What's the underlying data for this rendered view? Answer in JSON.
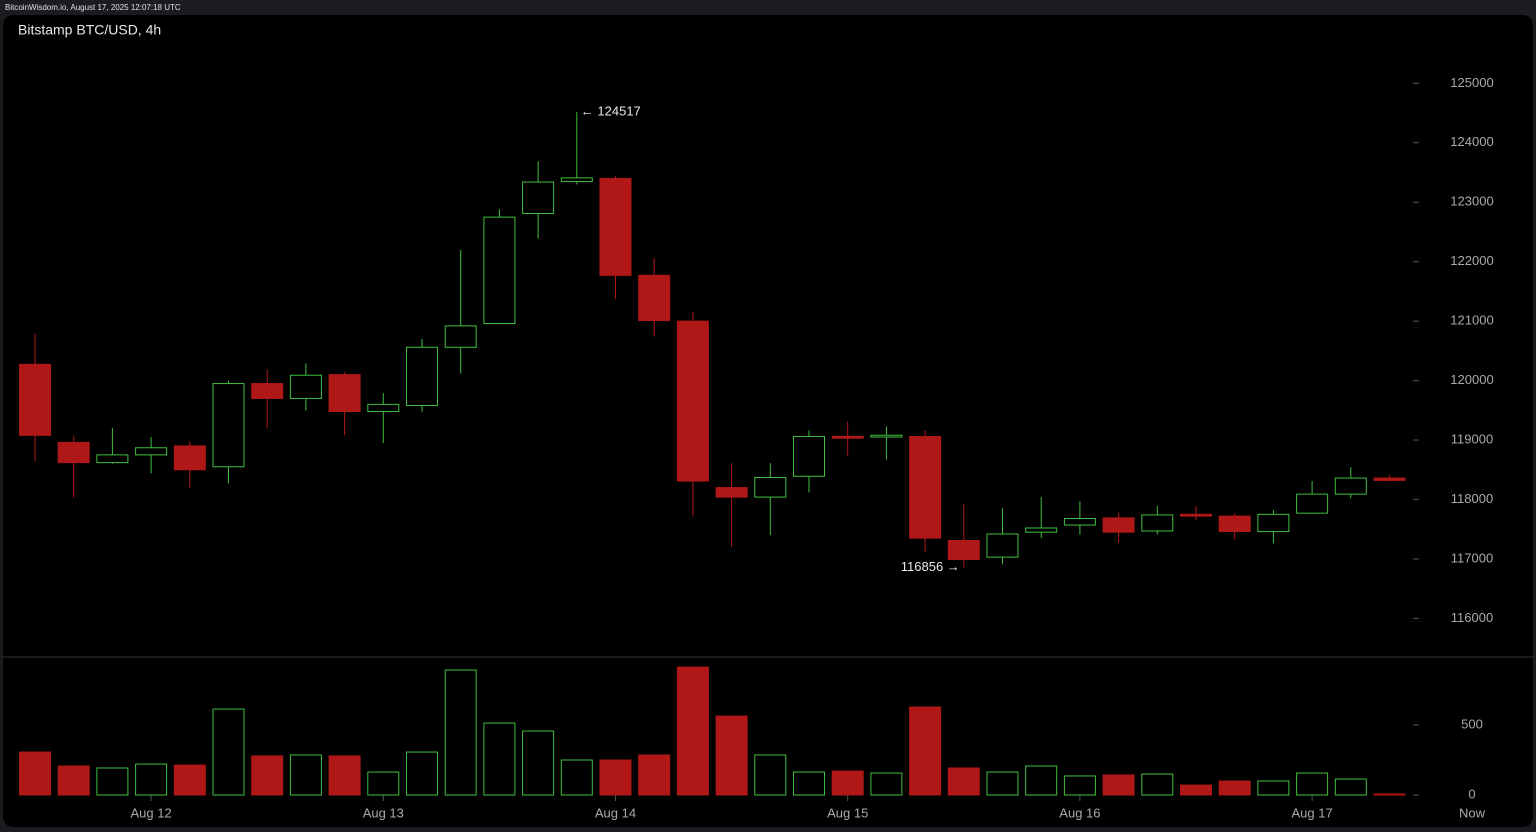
{
  "header": "BitcoinWisdom.io, August 17, 2025 12:07:18 UTC",
  "chart_data": [
    {
      "type": "candlestick",
      "title": "Bitstamp BTC/USD, 4h",
      "categories": [
        null,
        null,
        null,
        "Aug 12",
        null,
        null,
        null,
        null,
        null,
        "Aug 13",
        null,
        null,
        null,
        null,
        null,
        "Aug 14",
        null,
        null,
        null,
        null,
        null,
        "Aug 15",
        null,
        null,
        null,
        null,
        null,
        "Aug 16",
        null,
        null,
        null,
        null,
        null,
        "Aug 17",
        null,
        null
      ],
      "open": [
        120273,
        118960,
        118620,
        118750,
        118900,
        118550,
        119950,
        119700,
        120100,
        119480,
        119580,
        120560,
        120960,
        122810,
        123350,
        123400,
        121770,
        121000,
        118200,
        118040,
        118390,
        119060,
        119050,
        119060,
        117310,
        117030,
        117450,
        117570,
        117690,
        117470,
        117750,
        117720,
        117460,
        117770,
        118090,
        118360
      ],
      "high": [
        120795,
        119060,
        119200,
        119050,
        118980,
        120000,
        120190,
        120290,
        120140,
        119790,
        120700,
        122200,
        122880,
        123690,
        124517,
        123440,
        122060,
        121160,
        118610,
        118610,
        119160,
        119310,
        119230,
        119160,
        117920,
        117850,
        118040,
        117970,
        117780,
        117890,
        117890,
        117770,
        117820,
        118310,
        118540,
        118410
      ],
      "low": [
        118642,
        118030,
        118600,
        118440,
        118200,
        118270,
        119200,
        119500,
        119080,
        118950,
        119470,
        120120,
        120960,
        122390,
        123300,
        121370,
        120740,
        117730,
        117200,
        117400,
        118120,
        118740,
        118670,
        117110,
        116856,
        116910,
        117350,
        117410,
        117270,
        117410,
        117650,
        117330,
        117260,
        117770,
        118020,
        118300
      ],
      "close": [
        119079,
        118620,
        118750,
        118870,
        118500,
        119950,
        119700,
        120090,
        119480,
        119600,
        120560,
        120920,
        122750,
        123340,
        123410,
        121770,
        121010,
        118310,
        118040,
        118370,
        119060,
        119030,
        119080,
        117350,
        116990,
        117420,
        117520,
        117680,
        117450,
        117740,
        117720,
        117460,
        117750,
        118090,
        118360,
        118320
      ],
      "up_color": "#3fbf3f",
      "down_color": "#b01818",
      "max_label": "← 124517",
      "min_label": "116856 →",
      "ylim": [
        115350,
        126150
      ],
      "yticks": [
        116000,
        117000,
        118000,
        119000,
        120000,
        121000,
        122000,
        123000,
        124000,
        125000
      ]
    },
    {
      "type": "volume",
      "values": [
        307,
        207,
        193,
        221,
        214,
        614,
        279,
        286,
        279,
        164,
        307,
        893,
        514,
        457,
        250,
        250,
        286,
        914,
        564,
        286,
        164,
        171,
        157,
        629,
        193,
        164,
        207,
        136,
        143,
        150,
        71,
        100,
        100,
        157,
        114,
        7
      ],
      "ylim": [
        0,
        986
      ],
      "yticks": [
        0,
        500
      ],
      "now_label": "Now"
    }
  ]
}
